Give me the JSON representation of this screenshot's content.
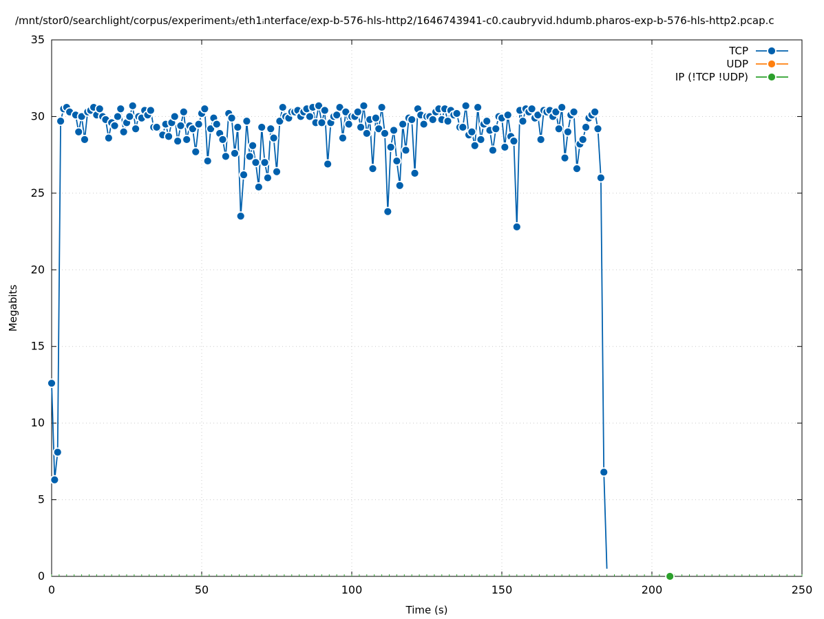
{
  "chart_data": {
    "type": "line",
    "title": "/mnt/stor0/searchlight/corpus/experiment₃/eth1ᵢnterface/exp-b-576-hls-http2/1646743941-c0.caubryvid.hdumb.pharos-exp-b-576-hls-http2.pcap.c",
    "xlabel": "Time (s)",
    "ylabel": "Megabits",
    "xlim": [
      0,
      250
    ],
    "ylim": [
      0,
      35
    ],
    "x_ticks": [
      0,
      50,
      100,
      150,
      200,
      250
    ],
    "y_ticks": [
      0,
      5,
      10,
      15,
      20,
      25,
      30,
      35
    ],
    "grid": true,
    "legend_position": "top-right",
    "series": [
      {
        "name": "TCP",
        "color": "#0060ad",
        "points": [
          [
            0,
            12.6
          ],
          [
            1,
            6.3
          ],
          [
            2,
            8.1
          ],
          [
            3,
            29.7
          ],
          [
            4,
            30.5
          ],
          [
            5,
            30.6
          ],
          [
            6,
            30.3
          ],
          [
            8,
            30.1
          ],
          [
            9,
            29.0
          ],
          [
            10,
            30.0
          ],
          [
            11,
            28.5
          ],
          [
            12,
            30.3
          ],
          [
            13,
            30.4
          ],
          [
            14,
            30.6
          ],
          [
            15,
            30.1
          ],
          [
            16,
            30.5
          ],
          [
            17,
            30.0
          ],
          [
            18,
            29.8
          ],
          [
            19,
            28.6
          ],
          [
            20,
            29.6
          ],
          [
            21,
            29.4
          ],
          [
            22,
            30.0
          ],
          [
            23,
            30.5
          ],
          [
            24,
            29.0
          ],
          [
            25,
            29.6
          ],
          [
            26,
            30.0
          ],
          [
            27,
            30.7
          ],
          [
            28,
            29.2
          ],
          [
            29,
            30.0
          ],
          [
            30,
            29.9
          ],
          [
            31,
            30.4
          ],
          [
            32,
            30.1
          ],
          [
            33,
            30.4
          ],
          [
            34,
            29.3
          ],
          [
            35,
            29.3
          ],
          [
            37,
            28.8
          ],
          [
            38,
            29.5
          ],
          [
            39,
            28.7
          ],
          [
            40,
            29.6
          ],
          [
            41,
            30.0
          ],
          [
            42,
            28.4
          ],
          [
            43,
            29.4
          ],
          [
            44,
            30.3
          ],
          [
            45,
            28.5
          ],
          [
            46,
            29.4
          ],
          [
            47,
            29.2
          ],
          [
            48,
            27.7
          ],
          [
            49,
            29.5
          ],
          [
            50,
            30.2
          ],
          [
            51,
            30.5
          ],
          [
            52,
            27.1
          ],
          [
            53,
            29.2
          ],
          [
            54,
            29.9
          ],
          [
            55,
            29.5
          ],
          [
            56,
            28.9
          ],
          [
            57,
            28.5
          ],
          [
            58,
            27.4
          ],
          [
            59,
            30.2
          ],
          [
            60,
            29.9
          ],
          [
            61,
            27.6
          ],
          [
            62,
            29.3
          ],
          [
            63,
            23.5
          ],
          [
            64,
            26.2
          ],
          [
            65,
            29.7
          ],
          [
            66,
            27.4
          ],
          [
            67,
            28.1
          ],
          [
            68,
            27.0
          ],
          [
            69,
            25.4
          ],
          [
            70,
            29.3
          ],
          [
            71,
            27.0
          ],
          [
            72,
            26.0
          ],
          [
            73,
            29.2
          ],
          [
            74,
            28.6
          ],
          [
            75,
            26.4
          ],
          [
            76,
            29.7
          ],
          [
            77,
            30.6
          ],
          [
            78,
            30.0
          ],
          [
            79,
            29.9
          ],
          [
            80,
            30.3
          ],
          [
            81,
            30.3
          ],
          [
            82,
            30.4
          ],
          [
            83,
            30.0
          ],
          [
            84,
            30.3
          ],
          [
            85,
            30.5
          ],
          [
            86,
            30.0
          ],
          [
            87,
            30.6
          ],
          [
            88,
            29.6
          ],
          [
            89,
            30.7
          ],
          [
            90,
            29.6
          ],
          [
            91,
            30.4
          ],
          [
            92,
            26.9
          ],
          [
            93,
            29.6
          ],
          [
            94,
            30.0
          ],
          [
            95,
            30.1
          ],
          [
            96,
            30.6
          ],
          [
            97,
            28.6
          ],
          [
            98,
            30.3
          ],
          [
            99,
            29.5
          ],
          [
            100,
            30.0
          ],
          [
            101,
            30.0
          ],
          [
            102,
            30.3
          ],
          [
            103,
            29.3
          ],
          [
            104,
            30.7
          ],
          [
            105,
            28.9
          ],
          [
            106,
            29.8
          ],
          [
            107,
            26.6
          ],
          [
            108,
            29.9
          ],
          [
            109,
            29.2
          ],
          [
            110,
            30.6
          ],
          [
            111,
            28.9
          ],
          [
            112,
            23.8
          ],
          [
            113,
            28.0
          ],
          [
            114,
            29.1
          ],
          [
            115,
            27.1
          ],
          [
            116,
            25.5
          ],
          [
            117,
            29.5
          ],
          [
            118,
            27.8
          ],
          [
            119,
            29.9
          ],
          [
            120,
            29.8
          ],
          [
            121,
            26.3
          ],
          [
            122,
            30.5
          ],
          [
            123,
            30.1
          ],
          [
            124,
            29.5
          ],
          [
            125,
            30.0
          ],
          [
            126,
            30.0
          ],
          [
            127,
            29.8
          ],
          [
            128,
            30.3
          ],
          [
            129,
            30.5
          ],
          [
            130,
            29.8
          ],
          [
            131,
            30.5
          ],
          [
            132,
            29.7
          ],
          [
            133,
            30.4
          ],
          [
            134,
            30.1
          ],
          [
            135,
            30.2
          ],
          [
            136,
            29.3
          ],
          [
            137,
            29.3
          ],
          [
            138,
            30.7
          ],
          [
            139,
            28.8
          ],
          [
            140,
            29.0
          ],
          [
            141,
            28.1
          ],
          [
            142,
            30.6
          ],
          [
            143,
            28.5
          ],
          [
            144,
            29.5
          ],
          [
            145,
            29.7
          ],
          [
            146,
            29.1
          ],
          [
            147,
            27.8
          ],
          [
            148,
            29.2
          ],
          [
            149,
            30.0
          ],
          [
            150,
            29.9
          ],
          [
            151,
            28.0
          ],
          [
            152,
            30.1
          ],
          [
            153,
            28.7
          ],
          [
            154,
            28.4
          ],
          [
            155,
            22.8
          ],
          [
            156,
            30.4
          ],
          [
            157,
            29.7
          ],
          [
            158,
            30.5
          ],
          [
            159,
            30.3
          ],
          [
            160,
            30.5
          ],
          [
            161,
            29.9
          ],
          [
            162,
            30.1
          ],
          [
            163,
            28.5
          ],
          [
            164,
            30.4
          ],
          [
            165,
            30.3
          ],
          [
            166,
            30.4
          ],
          [
            167,
            30.0
          ],
          [
            168,
            30.3
          ],
          [
            169,
            29.2
          ],
          [
            170,
            30.6
          ],
          [
            171,
            27.3
          ],
          [
            172,
            29.0
          ],
          [
            173,
            30.1
          ],
          [
            174,
            30.3
          ],
          [
            175,
            26.6
          ],
          [
            176,
            28.2
          ],
          [
            177,
            28.5
          ],
          [
            178,
            29.3
          ],
          [
            179,
            29.9
          ],
          [
            180,
            30.1
          ],
          [
            181,
            30.3
          ],
          [
            182,
            29.2
          ],
          [
            183,
            26.0
          ],
          [
            184,
            6.8
          ],
          [
            185,
            0.5
          ]
        ]
      },
      {
        "name": "UDP",
        "color": "#ff7f0e",
        "points": []
      },
      {
        "name": "IP (!TCP  !UDP)",
        "color": "#2ca02c",
        "points": [
          [
            206,
            0.0
          ]
        ]
      }
    ]
  }
}
